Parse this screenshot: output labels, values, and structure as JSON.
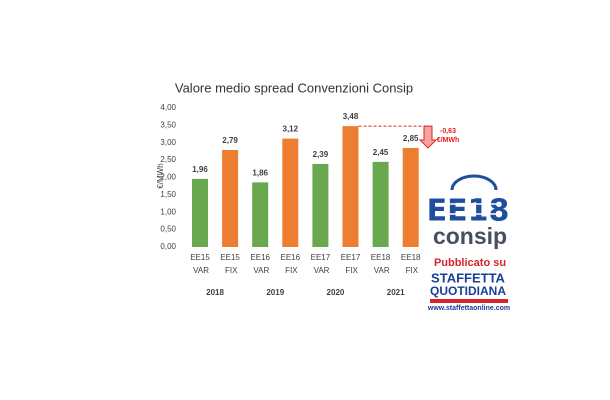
{
  "chart_data": {
    "type": "bar",
    "title": "Valore medio spread Convenzioni Consip",
    "y_label": "€/MWh",
    "categories": [
      "EE15 VAR",
      "EE15 FIX",
      "EE16 VAR",
      "EE16 FIX",
      "EE17 VAR",
      "EE17 FIX",
      "EE18 VAR",
      "EE18 FIX"
    ],
    "groups": [
      "2018",
      "2019",
      "2020",
      "2021"
    ],
    "values": [
      1.96,
      2.79,
      1.86,
      3.12,
      2.39,
      3.48,
      2.45,
      2.85
    ],
    "value_labels": [
      "1,96",
      "2,79",
      "1,86",
      "3,12",
      "2,39",
      "3,48",
      "2,45",
      "2,85"
    ],
    "colors": [
      "#6aa84f",
      "#ed7d31",
      "#6aa84f",
      "#ed7d31",
      "#6aa84f",
      "#ed7d31",
      "#6aa84f",
      "#ed7d31"
    ],
    "ylim": [
      0,
      4
    ],
    "yticks": [
      {
        "value": 0,
        "label": "0,00"
      },
      {
        "value": 0.5,
        "label": "0,50"
      },
      {
        "value": 1,
        "label": "1,00"
      },
      {
        "value": 1.5,
        "label": "1,50"
      },
      {
        "value": 2,
        "label": "2,00"
      },
      {
        "value": 2.5,
        "label": "2,50"
      },
      {
        "value": 3,
        "label": "3,00"
      },
      {
        "value": 3.5,
        "label": "3,50"
      },
      {
        "value": 4,
        "label": "4,00"
      }
    ],
    "grid": false,
    "annotation": {
      "label": "-0,63",
      "unit": "€/MWh"
    }
  },
  "branding": {
    "logo": "EE18",
    "brand": "consip",
    "published": "Pubblicato su",
    "paper": [
      "STAFFETTA",
      "QUOTIDIANA"
    ],
    "url": "www.staffettaonline.com"
  }
}
